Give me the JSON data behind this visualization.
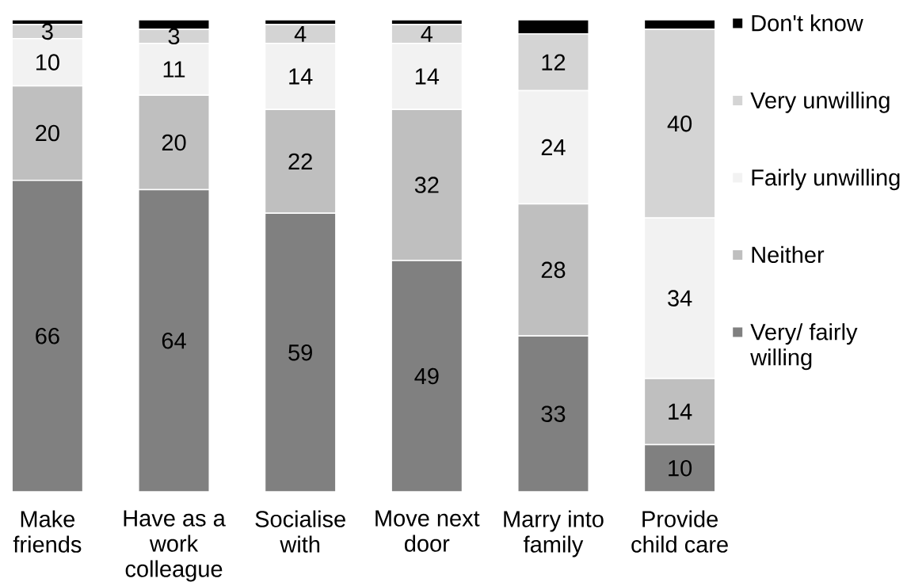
{
  "chart_data": {
    "type": "bar",
    "stacked": true,
    "legend": "right",
    "categories": [
      "Make friends",
      "Have as a work colleague",
      "Socialise with",
      "Move next door",
      "Marry into family",
      "Provide child care"
    ],
    "series": [
      {
        "name": "Very/ fairly willing",
        "color": "#808080",
        "values": [
          66,
          64,
          59,
          49,
          33,
          10
        ],
        "value_labels": [
          "66",
          "64",
          "59",
          "49",
          "33",
          "10"
        ]
      },
      {
        "name": "Neither",
        "color": "#bfbfbf",
        "values": [
          20,
          20,
          22,
          32,
          28,
          14
        ],
        "value_labels": [
          "20",
          "20",
          "22",
          "32",
          "28",
          "14"
        ]
      },
      {
        "name": "Fairly unwilling",
        "color": "#f2f2f2",
        "values": [
          10,
          11,
          14,
          14,
          24,
          34
        ],
        "value_labels": [
          "10",
          "11",
          "14",
          "14",
          "24",
          "34"
        ]
      },
      {
        "name": "Very unwilling",
        "color": "#d4d4d4",
        "values": [
          3,
          3,
          4,
          4,
          12,
          40
        ],
        "value_labels": [
          "3",
          "3",
          "4",
          "4",
          "12",
          "40"
        ]
      },
      {
        "name": "Don't know",
        "color": "#000000",
        "values": [
          1,
          2,
          1,
          1,
          3,
          2
        ]
      }
    ]
  }
}
